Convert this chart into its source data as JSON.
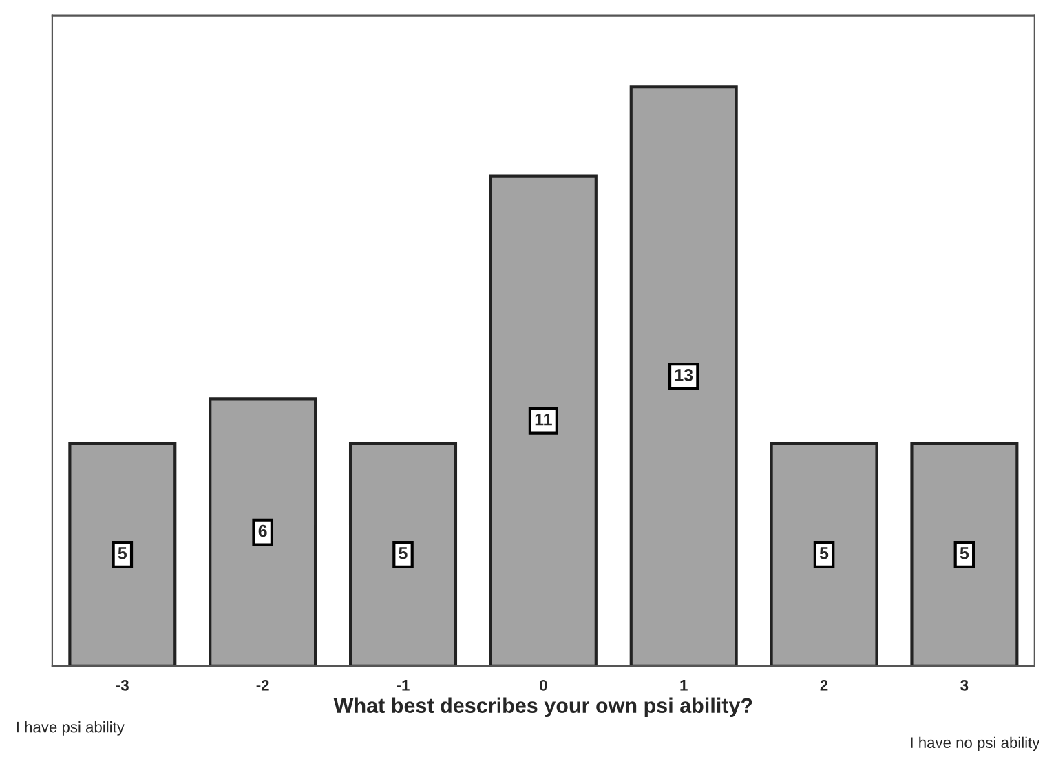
{
  "chart_data": {
    "type": "bar",
    "xlabel": "What best describes your own psi ability?",
    "categories": [
      "-3",
      "-2",
      "-1",
      "0",
      "1",
      "2",
      "3"
    ],
    "values": [
      5,
      6,
      5,
      11,
      13,
      5,
      5
    ],
    "color": "#a3a3a3",
    "data_labels": true,
    "ylim": [
      0,
      14.6
    ],
    "annotations": [
      "I have psi ability",
      "I have no psi ability"
    ]
  }
}
